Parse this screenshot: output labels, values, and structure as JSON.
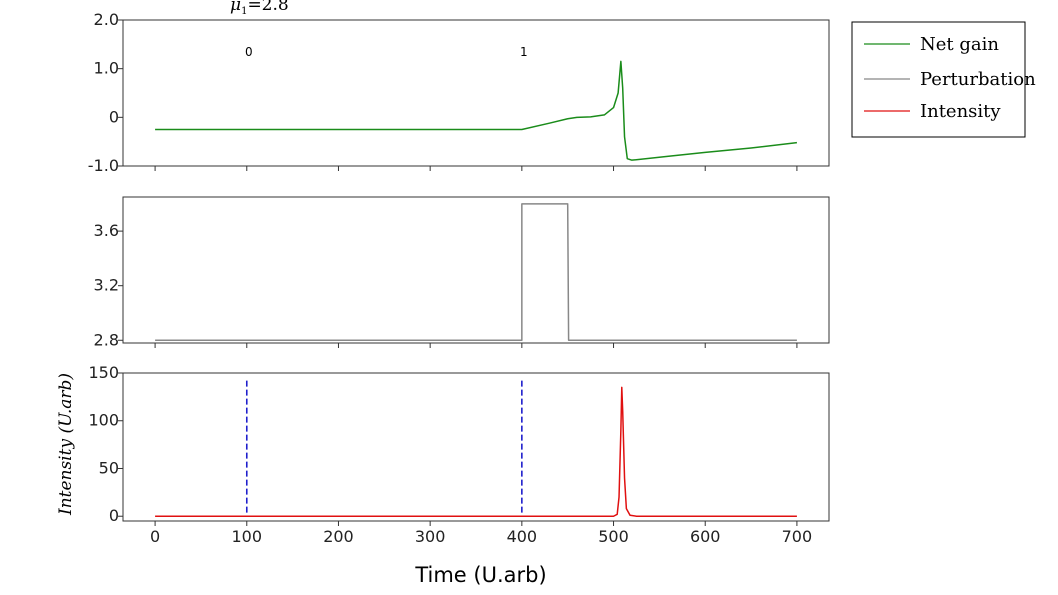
{
  "chart_data": [
    {
      "type": "line",
      "panel": "top",
      "annotation": "μ1=2.8",
      "markers": [
        {
          "x": 100,
          "label": "0"
        },
        {
          "x": 400,
          "label": "1"
        }
      ],
      "ylim": [
        -1.0,
        2.0
      ],
      "yticks": [
        {
          "value": 2.0,
          "label": "2.0"
        },
        {
          "value": 1.0,
          "label": "1.0"
        },
        {
          "value": 0,
          "label": "0"
        },
        {
          "value": -1.0,
          "label": "-1.0"
        }
      ],
      "xlim": [
        -35,
        735
      ],
      "series": [
        {
          "name": "Net gain",
          "color": "#1a8c1a",
          "points": [
            [
              0,
              -0.25
            ],
            [
              400,
              -0.25
            ],
            [
              430,
              -0.12
            ],
            [
              450,
              -0.03
            ],
            [
              460,
              0.0
            ],
            [
              475,
              0.01
            ],
            [
              490,
              0.05
            ],
            [
              500,
              0.2
            ],
            [
              505,
              0.5
            ],
            [
              508,
              1.15
            ],
            [
              510,
              0.6
            ],
            [
              512,
              -0.4
            ],
            [
              515,
              -0.85
            ],
            [
              520,
              -0.88
            ],
            [
              560,
              -0.8
            ],
            [
              600,
              -0.72
            ],
            [
              650,
              -0.63
            ],
            [
              700,
              -0.52
            ]
          ]
        }
      ]
    },
    {
      "type": "line",
      "panel": "middle",
      "ylim": [
        2.78,
        3.85
      ],
      "yticks": [
        {
          "value": 3.6,
          "label": "3.6"
        },
        {
          "value": 3.2,
          "label": "3.2"
        },
        {
          "value": 2.8,
          "label": "2.8"
        }
      ],
      "xlim": [
        -35,
        735
      ],
      "series": [
        {
          "name": "Perturbation",
          "color": "#888888",
          "points": [
            [
              0,
              2.8
            ],
            [
              400,
              2.8
            ],
            [
              400,
              3.8
            ],
            [
              450,
              3.8
            ],
            [
              451,
              2.8
            ],
            [
              700,
              2.8
            ]
          ]
        }
      ]
    },
    {
      "type": "line",
      "panel": "bottom",
      "ylabel": "Intensity (U.arb)",
      "ylim": [
        -5,
        150
      ],
      "yticks": [
        {
          "value": 150,
          "label": "150"
        },
        {
          "value": 100,
          "label": "100"
        },
        {
          "value": 50,
          "label": "50"
        },
        {
          "value": 0,
          "label": "0"
        }
      ],
      "xlim": [
        -35,
        735
      ],
      "xticks": [
        {
          "value": 0,
          "label": "0"
        },
        {
          "value": 100,
          "label": "100"
        },
        {
          "value": 200,
          "label": "200"
        },
        {
          "value": 300,
          "label": "300"
        },
        {
          "value": 400,
          "label": "400"
        },
        {
          "value": 500,
          "label": "500"
        },
        {
          "value": 600,
          "label": "600"
        },
        {
          "value": 700,
          "label": "700"
        }
      ],
      "xlabel": "Time (U.arb)",
      "vlines": [
        {
          "x": 100,
          "color": "#1f1fcc",
          "style": "dashed",
          "ymax": 142
        },
        {
          "x": 400,
          "color": "#1f1fcc",
          "style": "dashed",
          "ymax": 142
        }
      ],
      "series": [
        {
          "name": "Intensity",
          "color": "#e01010",
          "points": [
            [
              0,
              0
            ],
            [
              500,
              0
            ],
            [
              504,
              2
            ],
            [
              506,
              20
            ],
            [
              508,
              90
            ],
            [
              509,
              135
            ],
            [
              510,
              110
            ],
            [
              512,
              40
            ],
            [
              514,
              8
            ],
            [
              518,
              1
            ],
            [
              525,
              0
            ],
            [
              700,
              0
            ]
          ]
        }
      ]
    }
  ],
  "legend": {
    "placement": "top-right",
    "entries": [
      {
        "label": "Net gain",
        "color": "#1a8c1a"
      },
      {
        "label": "Perturbation",
        "color": "#888888"
      },
      {
        "label": "Intensity",
        "color": "#e01010"
      }
    ]
  }
}
